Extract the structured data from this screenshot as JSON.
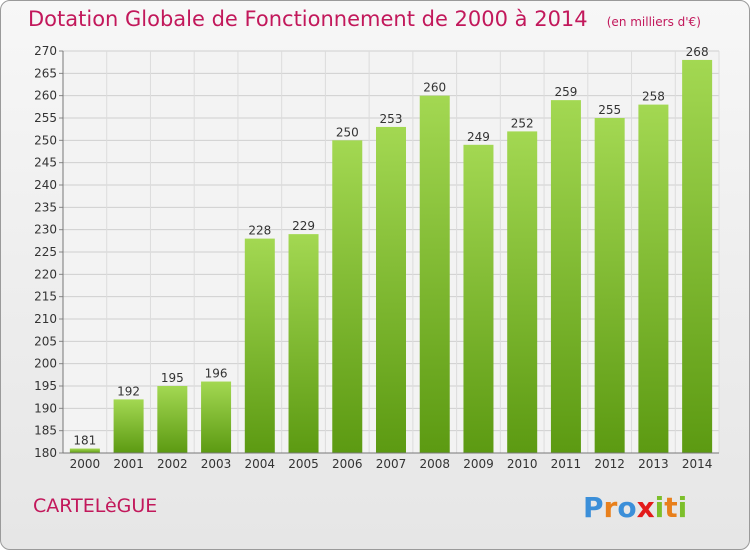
{
  "title": "Dotation Globale de Fonctionnement de 2000 à 2014",
  "unit_note": "(en milliers d'€)",
  "commune": "CARTELèGUE",
  "logo_text": "Proxiti",
  "colors": {
    "bar_top": "#9fd44e",
    "bar_bottom": "#5f9e14",
    "title": "#c2185b"
  },
  "chart_data": {
    "type": "bar",
    "categories": [
      "2000",
      "2001",
      "2002",
      "2003",
      "2004",
      "2005",
      "2006",
      "2007",
      "2008",
      "2009",
      "2010",
      "2011",
      "2012",
      "2013",
      "2014"
    ],
    "values": [
      181,
      192,
      195,
      196,
      228,
      229,
      250,
      253,
      260,
      249,
      252,
      259,
      255,
      258,
      268
    ],
    "title": "Dotation Globale de Fonctionnement de 2000 à 2014",
    "xlabel": "",
    "ylabel": "",
    "ylim": [
      180,
      270
    ],
    "yticks": [
      180,
      185,
      190,
      195,
      200,
      205,
      210,
      215,
      220,
      225,
      230,
      235,
      240,
      245,
      250,
      255,
      260,
      265,
      270
    ],
    "grid": true,
    "data_labels": true
  }
}
